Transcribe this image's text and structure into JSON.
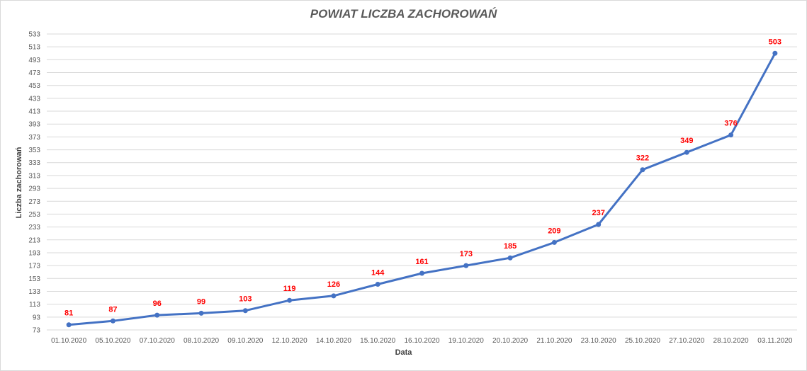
{
  "chart_data": {
    "type": "line",
    "title": "POWIAT LICZBA ZACHOROWAŃ",
    "xlabel": "Data",
    "ylabel": "Liczba zachorowań",
    "categories": [
      "01.10.2020",
      "05.10.2020",
      "07.10.2020",
      "08.10.2020",
      "09.10.2020",
      "12.10.2020",
      "14.10.2020",
      "15.10.2020",
      "16.10.2020",
      "19.10.2020",
      "20.10.2020",
      "21.10.2020",
      "23.10.2020",
      "25.10.2020",
      "27.10.2020",
      "28.10.2020",
      "03.11.2020"
    ],
    "series": [
      {
        "values": [
          81,
          87,
          96,
          99,
          103,
          119,
          126,
          144,
          161,
          173,
          185,
          209,
          237,
          322,
          349,
          376,
          503
        ]
      }
    ],
    "yticks": [
      73,
      93,
      113,
      133,
      153,
      173,
      193,
      213,
      233,
      253,
      273,
      293,
      313,
      333,
      353,
      373,
      393,
      413,
      433,
      453,
      473,
      493,
      513,
      533
    ],
    "ylim": [
      73,
      533
    ],
    "grid": true,
    "legend": "none",
    "colors": {
      "line": "#4472c4",
      "data_label": "#ff0000",
      "grid": "#d9d9d9",
      "tick": "#595959"
    }
  }
}
